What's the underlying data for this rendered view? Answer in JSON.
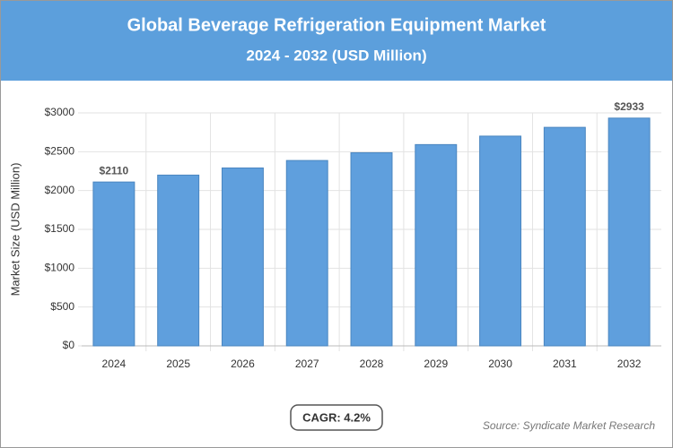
{
  "chart_data": {
    "type": "bar",
    "title": "Global Beverage Refrigeration Equipment Market",
    "subtitle": "2024 - 2032 (USD Million)",
    "y_label": "Market Size (USD Million)",
    "categories": [
      "2024",
      "2025",
      "2026",
      "2027",
      "2028",
      "2029",
      "2030",
      "2031",
      "2032"
    ],
    "values": [
      2110,
      2199,
      2291,
      2387,
      2487,
      2592,
      2701,
      2814,
      2933
    ],
    "value_labels": [
      "$2110",
      null,
      null,
      null,
      null,
      null,
      null,
      null,
      "$2933"
    ],
    "color": "#5f9fdd",
    "ylim": [
      0,
      3000
    ],
    "yticks": [
      {
        "value": 0,
        "label": "$0"
      },
      {
        "value": 500,
        "label": "$500"
      },
      {
        "value": 1000,
        "label": "$1000"
      },
      {
        "value": 1500,
        "label": "$1500"
      },
      {
        "value": 2000,
        "label": "$2000"
      },
      {
        "value": 2500,
        "label": "$2500"
      },
      {
        "value": 3000,
        "label": "$3000"
      }
    ],
    "grid": true,
    "cagr": "CAGR: 4.2%",
    "source": "Source: Syndicate Market Research"
  }
}
